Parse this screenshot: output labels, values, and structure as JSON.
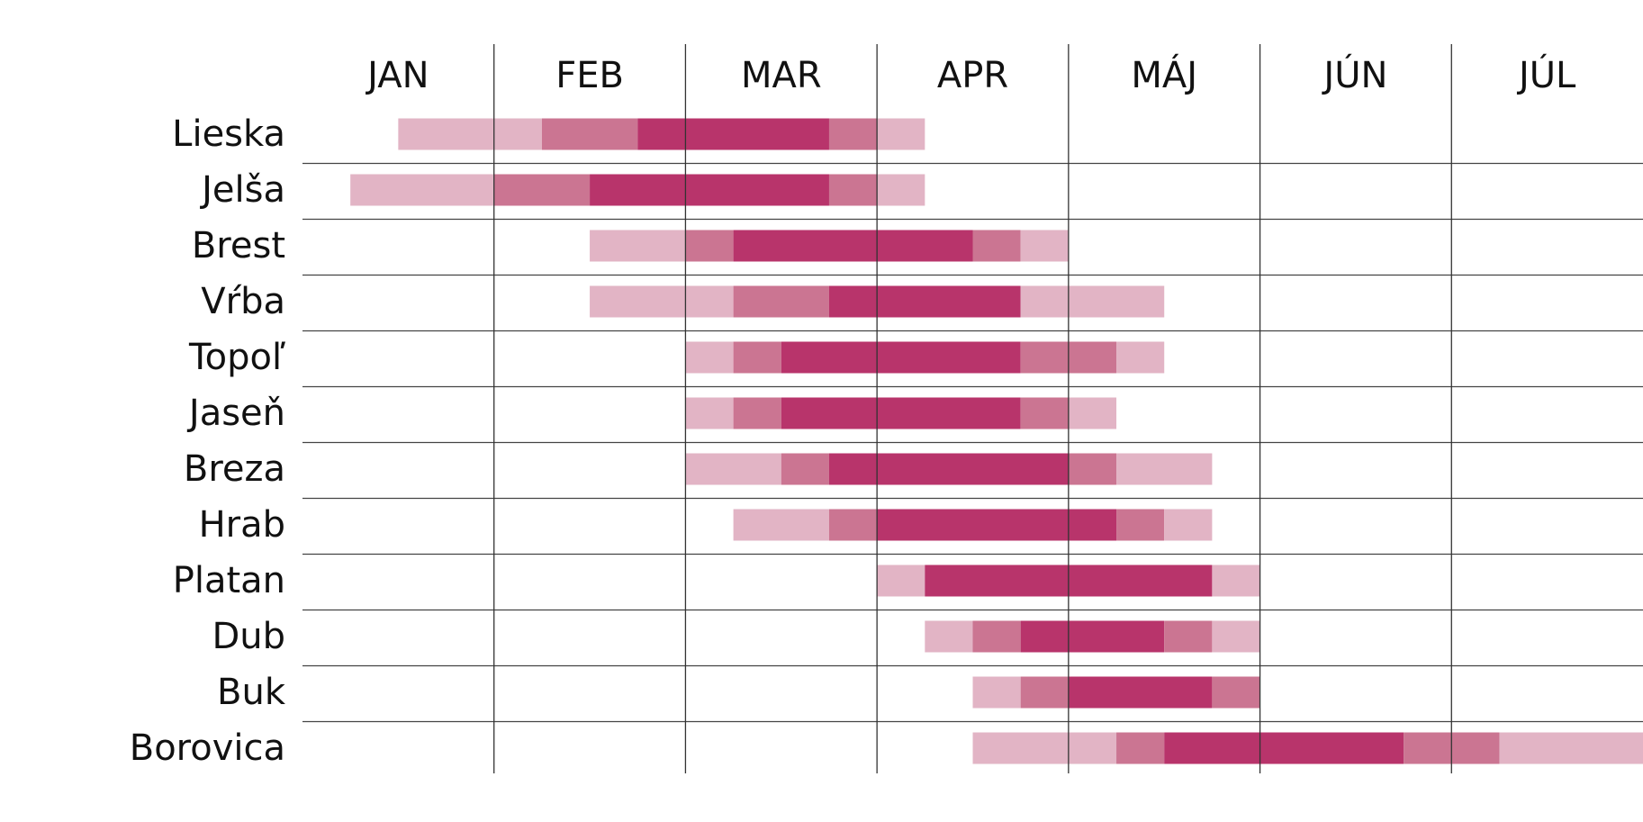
{
  "chart_data": {
    "type": "calendar",
    "categories": [
      "JAN",
      "FEB",
      "MAR",
      "APR",
      "MÁJ",
      "JÚN",
      "JÚL"
    ],
    "xlim": [
      0,
      7
    ],
    "xticks": [
      1,
      2,
      3,
      4,
      5,
      6
    ],
    "colors": {
      "light": "#e2b4c5",
      "medium": "#cb7592",
      "dark": "#b8346b"
    },
    "rows": [
      {
        "label": "Lieska",
        "segments": [
          {
            "start": 0.5,
            "end": 1.25,
            "level": "light"
          },
          {
            "start": 1.25,
            "end": 1.75,
            "level": "medium"
          },
          {
            "start": 1.75,
            "end": 2.75,
            "level": "dark"
          },
          {
            "start": 2.75,
            "end": 3,
            "level": "medium"
          },
          {
            "start": 3,
            "end": 3.25,
            "level": "light"
          }
        ]
      },
      {
        "label": "Jelša",
        "segments": [
          {
            "start": 0.25,
            "end": 1,
            "level": "light"
          },
          {
            "start": 1,
            "end": 1.5,
            "level": "medium"
          },
          {
            "start": 1.5,
            "end": 2.75,
            "level": "dark"
          },
          {
            "start": 2.75,
            "end": 3,
            "level": "medium"
          },
          {
            "start": 3,
            "end": 3.25,
            "level": "light"
          }
        ]
      },
      {
        "label": "Brest",
        "segments": [
          {
            "start": 1.5,
            "end": 2,
            "level": "light"
          },
          {
            "start": 2,
            "end": 2.25,
            "level": "medium"
          },
          {
            "start": 2.25,
            "end": 3.5,
            "level": "dark"
          },
          {
            "start": 3.5,
            "end": 3.75,
            "level": "medium"
          },
          {
            "start": 3.75,
            "end": 4,
            "level": "light"
          }
        ]
      },
      {
        "label": "Vŕba",
        "segments": [
          {
            "start": 1.5,
            "end": 2.25,
            "level": "light"
          },
          {
            "start": 2.25,
            "end": 2.75,
            "level": "medium"
          },
          {
            "start": 2.75,
            "end": 3.75,
            "level": "dark"
          },
          {
            "start": 3.75,
            "end": 4.5,
            "level": "light"
          }
        ]
      },
      {
        "label": "Topoľ",
        "segments": [
          {
            "start": 2,
            "end": 2.25,
            "level": "light"
          },
          {
            "start": 2.25,
            "end": 2.5,
            "level": "medium"
          },
          {
            "start": 2.5,
            "end": 3.75,
            "level": "dark"
          },
          {
            "start": 3.75,
            "end": 4.25,
            "level": "medium"
          },
          {
            "start": 4.25,
            "end": 4.5,
            "level": "light"
          }
        ]
      },
      {
        "label": "Jaseň",
        "segments": [
          {
            "start": 2,
            "end": 2.25,
            "level": "light"
          },
          {
            "start": 2.25,
            "end": 2.5,
            "level": "medium"
          },
          {
            "start": 2.5,
            "end": 3.75,
            "level": "dark"
          },
          {
            "start": 3.75,
            "end": 4,
            "level": "medium"
          },
          {
            "start": 4,
            "end": 4.25,
            "level": "light"
          }
        ]
      },
      {
        "label": "Breza",
        "segments": [
          {
            "start": 2,
            "end": 2.5,
            "level": "light"
          },
          {
            "start": 2.5,
            "end": 2.75,
            "level": "medium"
          },
          {
            "start": 2.75,
            "end": 4,
            "level": "dark"
          },
          {
            "start": 4,
            "end": 4.25,
            "level": "medium"
          },
          {
            "start": 4.25,
            "end": 4.75,
            "level": "light"
          }
        ]
      },
      {
        "label": "Hrab",
        "segments": [
          {
            "start": 2.25,
            "end": 2.75,
            "level": "light"
          },
          {
            "start": 2.75,
            "end": 3,
            "level": "medium"
          },
          {
            "start": 3,
            "end": 4.25,
            "level": "dark"
          },
          {
            "start": 4.25,
            "end": 4.5,
            "level": "medium"
          },
          {
            "start": 4.5,
            "end": 4.75,
            "level": "light"
          }
        ]
      },
      {
        "label": "Platan",
        "segments": [
          {
            "start": 3,
            "end": 3.25,
            "level": "light"
          },
          {
            "start": 3.25,
            "end": 4.75,
            "level": "dark"
          },
          {
            "start": 4.75,
            "end": 5,
            "level": "light"
          }
        ]
      },
      {
        "label": "Dub",
        "segments": [
          {
            "start": 3.25,
            "end": 3.5,
            "level": "light"
          },
          {
            "start": 3.5,
            "end": 3.75,
            "level": "medium"
          },
          {
            "start": 3.75,
            "end": 4.5,
            "level": "dark"
          },
          {
            "start": 4.5,
            "end": 4.75,
            "level": "medium"
          },
          {
            "start": 4.75,
            "end": 5,
            "level": "light"
          }
        ]
      },
      {
        "label": "Buk",
        "segments": [
          {
            "start": 3.5,
            "end": 3.75,
            "level": "light"
          },
          {
            "start": 3.75,
            "end": 4,
            "level": "medium"
          },
          {
            "start": 4,
            "end": 4.75,
            "level": "dark"
          },
          {
            "start": 4.75,
            "end": 5,
            "level": "medium"
          }
        ]
      },
      {
        "label": "Borovica",
        "segments": [
          {
            "start": 3.5,
            "end": 4.25,
            "level": "light"
          },
          {
            "start": 4.25,
            "end": 4.5,
            "level": "medium"
          },
          {
            "start": 4.5,
            "end": 5.75,
            "level": "dark"
          },
          {
            "start": 5.75,
            "end": 6.25,
            "level": "medium"
          },
          {
            "start": 6.25,
            "end": 7,
            "level": "light"
          }
        ]
      }
    ]
  }
}
